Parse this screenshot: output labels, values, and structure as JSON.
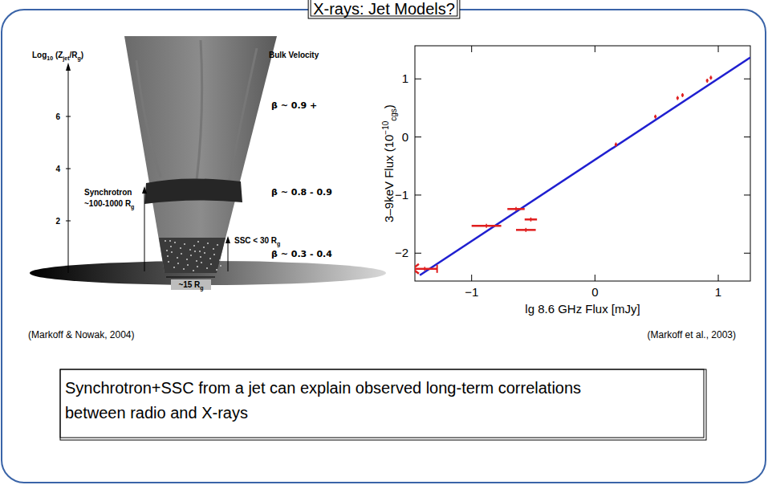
{
  "slide": {
    "title": "X-rays: Jet Models?",
    "conclusion": [
      "Synchrotron+SSC from a jet can explain observed long-term correlations",
      "between radio and X-rays"
    ],
    "left_caption": "(Markoff & Nowak, 2004)",
    "right_caption": "(Markoff et al., 2003)",
    "diagram": {
      "axis_label": [
        "Log",
        "10",
        " (Z",
        "jet",
        "/R",
        "g",
        ")"
      ],
      "axis_ticks": [
        2,
        4,
        6
      ],
      "velocity_title": "Bulk Velocity",
      "velocities": [
        "β ~ 0.9 +",
        "β ~ 0.8 - 0.9",
        "β ~ 0.3 - 0.4"
      ],
      "synchrotron": [
        "Synchrotron",
        [
          "~100-1000 R",
          "g"
        ]
      ],
      "ssc": [
        "SSC < 30 R",
        "g"
      ],
      "base_width": [
        "~15 R",
        "g"
      ]
    }
  },
  "chart_data": {
    "type": "scatter",
    "xlabel": "lg 8.6 GHz Flux [mJy]",
    "ylabel": [
      "3–9keV Flux (10",
      "−10",
      "cgs",
      ")"
    ],
    "xlim": [
      -1.46,
      1.26
    ],
    "ylim": [
      -2.48,
      1.57
    ],
    "xticks": [
      -1,
      0,
      1
    ],
    "yticks": [
      -2,
      -1,
      0,
      1
    ],
    "series": [
      {
        "type": "line",
        "color": "#1f1fd0",
        "x": [
          -1.42,
          1.26
        ],
        "values": [
          -2.38,
          1.37
        ]
      },
      {
        "type": "scatter",
        "color": "#e01e1e",
        "marker": "point",
        "x": [
          -1.38,
          -0.88,
          -0.64,
          -0.56,
          -0.52,
          0.17,
          0.49,
          0.67,
          0.71,
          0.91,
          0.94
        ],
        "values": [
          -2.27,
          -1.53,
          -1.24,
          -1.6,
          -1.42,
          -0.13,
          0.35,
          0.67,
          0.72,
          0.97,
          1.02
        ],
        "xerr": [
          0.1,
          0.12,
          0.07,
          0.08,
          0.05,
          0.01,
          0.01,
          0.01,
          0.01,
          0.01,
          0.01
        ],
        "upper_limits": [
          true,
          false,
          false,
          false,
          false,
          false,
          false,
          false,
          false,
          false,
          false
        ]
      }
    ]
  }
}
